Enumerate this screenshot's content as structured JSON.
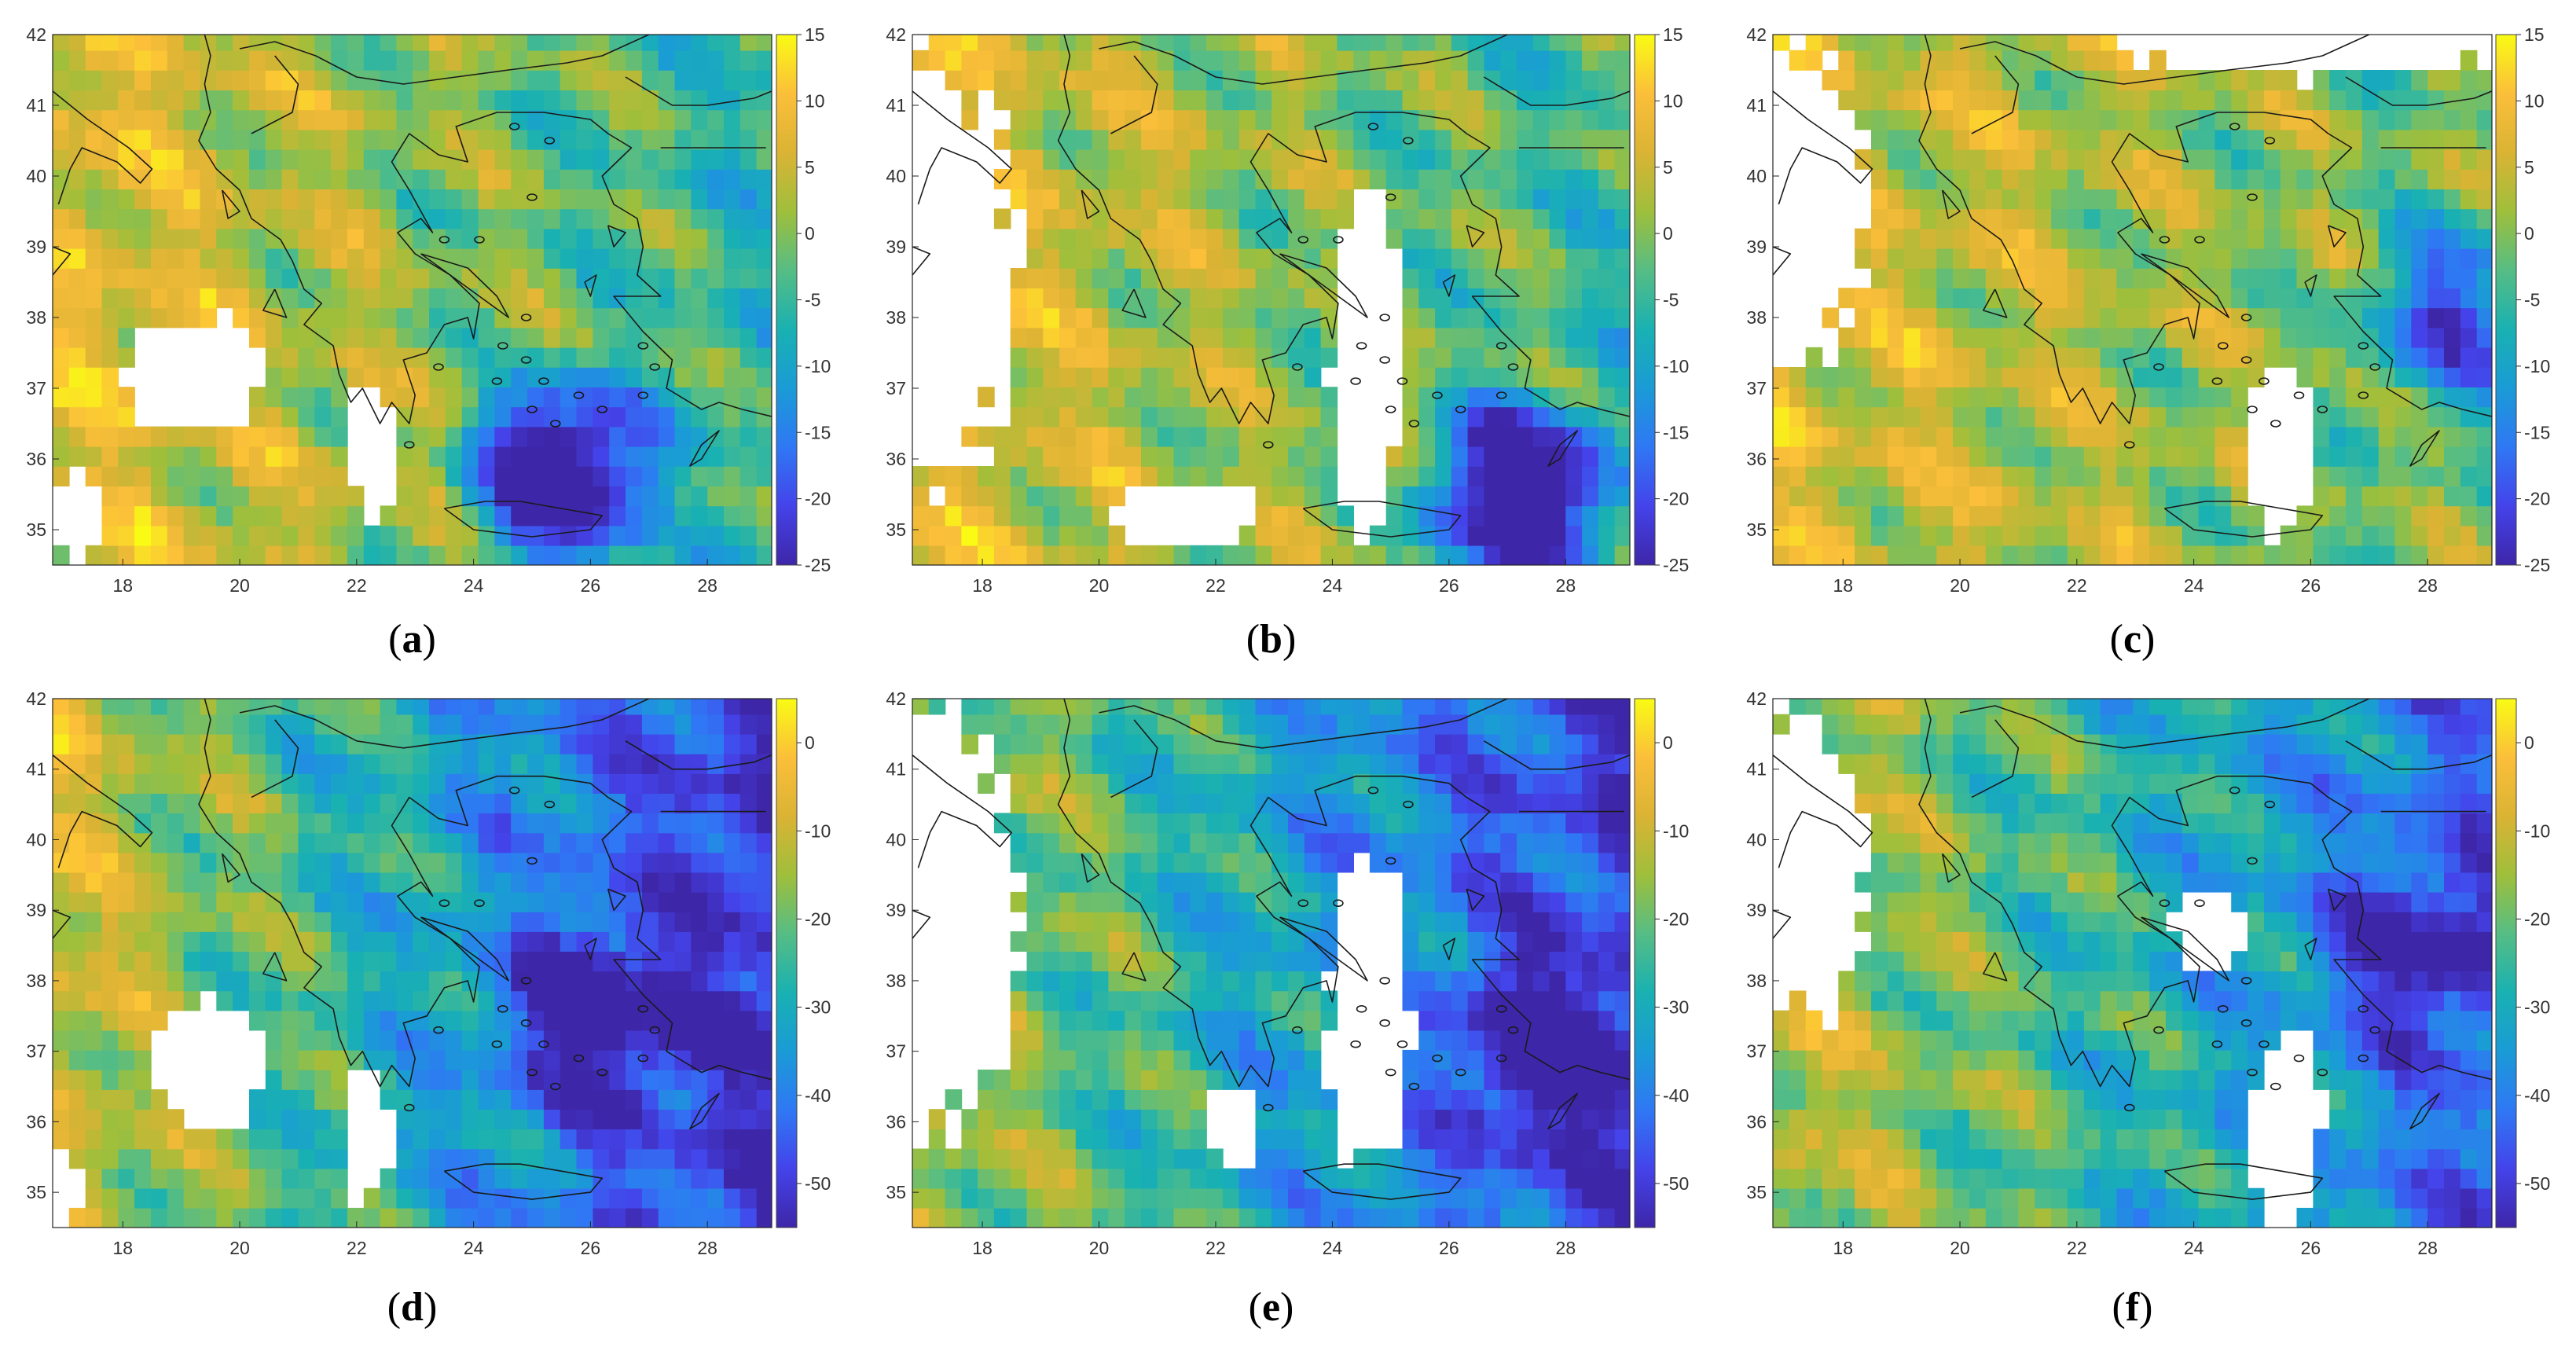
{
  "figure": {
    "axes": {
      "x_ticks": [
        "18",
        "20",
        "22",
        "24",
        "26",
        "28"
      ],
      "y_ticks": [
        "42",
        "41",
        "40",
        "39",
        "38",
        "37",
        "36",
        "35"
      ],
      "x_range": [
        16.8,
        29.1
      ],
      "y_range": [
        34.5,
        42.0
      ]
    },
    "colormap": "parula",
    "colormap_stops": [
      "#3e26a8",
      "#4443ea",
      "#2f78f4",
      "#1a9bd6",
      "#19b1b2",
      "#56bd84",
      "#9fbf3b",
      "#dbb334",
      "#fbbf3a",
      "#f9fb14"
    ],
    "panels": [
      {
        "label": "a",
        "colorbar_ticks": [
          "15",
          "10",
          "5",
          "0",
          "-5",
          "-10",
          "-15",
          "-20",
          "-25"
        ],
        "clim": [
          -25,
          15
        ]
      },
      {
        "label": "b",
        "colorbar_ticks": [
          "15",
          "10",
          "5",
          "0",
          "-5",
          "-10",
          "-15",
          "-20",
          "-25"
        ],
        "clim": [
          -25,
          15
        ]
      },
      {
        "label": "c",
        "colorbar_ticks": [
          "15",
          "10",
          "5",
          "0",
          "-5",
          "-10",
          "-15",
          "-20",
          "-25"
        ],
        "clim": [
          -25,
          15
        ]
      },
      {
        "label": "d",
        "colorbar_ticks": [
          "0",
          "-10",
          "-20",
          "-30",
          "-40",
          "-50"
        ],
        "clim": [
          -55,
          5
        ]
      },
      {
        "label": "e",
        "colorbar_ticks": [
          "0",
          "-10",
          "-20",
          "-30",
          "-40",
          "-50"
        ],
        "clim": [
          -55,
          5
        ]
      },
      {
        "label": "f",
        "colorbar_ticks": [
          "0",
          "-10",
          "-20",
          "-30",
          "-40",
          "-50"
        ],
        "clim": [
          -55,
          5
        ]
      }
    ]
  }
}
